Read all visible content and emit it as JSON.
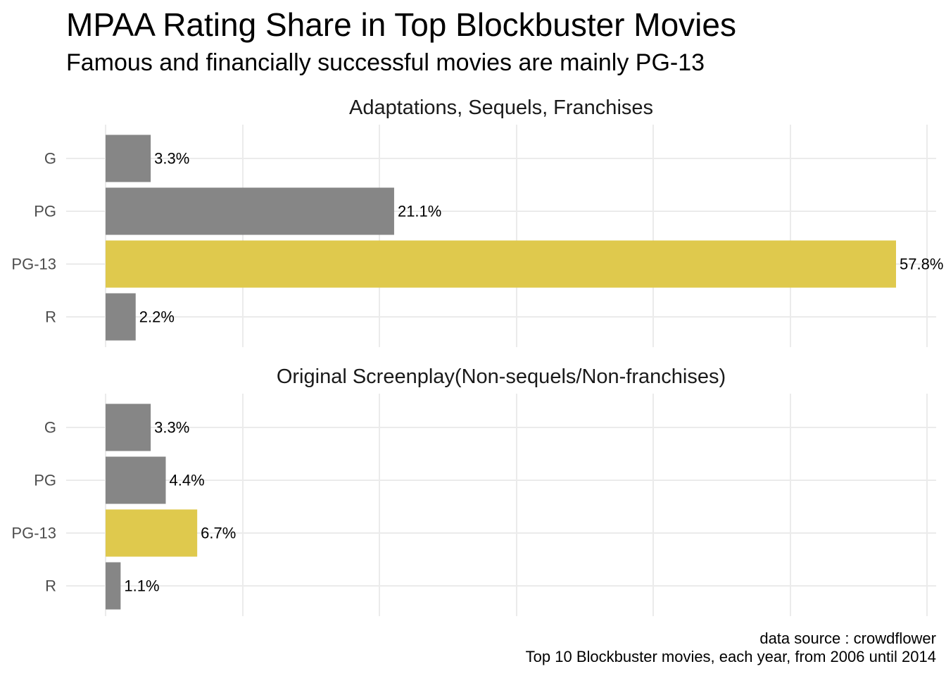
{
  "title": "MPAA Rating Share in Top Blockbuster Movies",
  "subtitle": "Famous and financially successful movies are mainly PG-13",
  "caption": {
    "line1": "data source : crowdflower",
    "line2": "Top 10 Blockbuster movies, each year, from 2006 until 2014"
  },
  "colors": {
    "highlight": "#dfc94d",
    "default": "#868686",
    "grid": "#ebebeb"
  },
  "chart_data": {
    "type": "bar",
    "orientation": "horizontal",
    "facet_wrap": true,
    "grid": true,
    "categories": [
      "G",
      "PG",
      "PG-13",
      "R"
    ],
    "highlight_category": "PG-13",
    "panels": [
      {
        "title": "Adaptations, Sequels, Franchises",
        "values": [
          3.3,
          21.1,
          57.8,
          2.2
        ],
        "labels": [
          "3.3%",
          "21.1%",
          "57.8%",
          "2.2%"
        ]
      },
      {
        "title": "Original Screenplay(Non-sequels/Non-franchises)",
        "values": [
          3.3,
          4.4,
          6.7,
          1.1
        ],
        "labels": [
          "3.3%",
          "4.4%",
          "6.7%",
          "1.1%"
        ]
      }
    ]
  }
}
